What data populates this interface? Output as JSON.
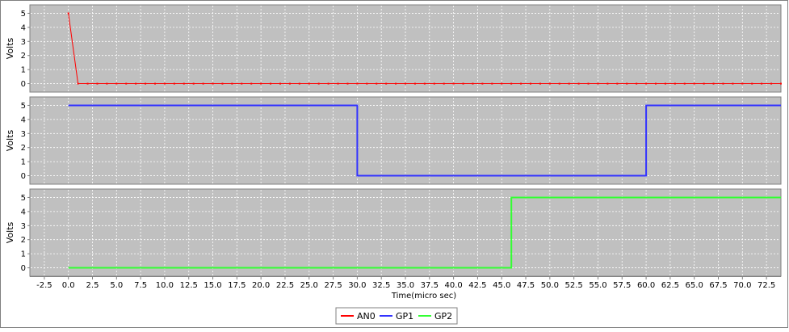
{
  "chart_data": {
    "type": "line",
    "xlabel": "Time(micro sec)",
    "xlim": [
      -4,
      74
    ],
    "x_ticks": [
      "-2.5",
      "0.0",
      "2.5",
      "5.0",
      "7.5",
      "10.0",
      "12.5",
      "15.0",
      "17.5",
      "20.0",
      "22.5",
      "25.0",
      "27.5",
      "30.0",
      "32.5",
      "35.0",
      "37.5",
      "40.0",
      "42.5",
      "45.0",
      "47.5",
      "50.0",
      "52.5",
      "55.0",
      "57.5",
      "60.0",
      "62.5",
      "65.0",
      "67.5",
      "70.0",
      "72.5"
    ],
    "grid": true,
    "legend_position": "bottom-center",
    "panels": [
      {
        "ylabel": "Volts",
        "ylim": [
          -0.6,
          5.6
        ],
        "y_ticks": [
          "0",
          "1",
          "2",
          "3",
          "4",
          "5"
        ],
        "series": [
          {
            "name": "AN0",
            "color": "#ff0000",
            "marker": "dot",
            "x": [
              0,
              1,
              2,
              3,
              4,
              5,
              6,
              7,
              8,
              9,
              10,
              11,
              12,
              13,
              14,
              15,
              16,
              17,
              18,
              19,
              20,
              21,
              22,
              23,
              24,
              25,
              26,
              27,
              28,
              29,
              30,
              31,
              32,
              33,
              34,
              35,
              36,
              37,
              38,
              39,
              40,
              41,
              42,
              43,
              44,
              45,
              46,
              47,
              48,
              49,
              50,
              51,
              52,
              53,
              54,
              55,
              56,
              57,
              58,
              59,
              60,
              61,
              62,
              63,
              64,
              65,
              66,
              67,
              68,
              69,
              70,
              71,
              72,
              73,
              74
            ],
            "y": [
              5,
              0,
              0,
              0,
              0,
              0,
              0,
              0,
              0,
              0,
              0,
              0,
              0,
              0,
              0,
              0,
              0,
              0,
              0,
              0,
              0,
              0,
              0,
              0,
              0,
              0,
              0,
              0,
              0,
              0,
              0,
              0,
              0,
              0,
              0,
              0,
              0,
              0,
              0,
              0,
              0,
              0,
              0,
              0,
              0,
              0,
              0,
              0,
              0,
              0,
              0,
              0,
              0,
              0,
              0,
              0,
              0,
              0,
              0,
              0,
              0,
              0,
              0,
              0,
              0,
              0,
              0,
              0,
              0,
              0,
              0,
              0,
              0,
              0,
              0
            ]
          }
        ]
      },
      {
        "ylabel": "Volts",
        "ylim": [
          -0.6,
          5.6
        ],
        "y_ticks": [
          "0",
          "1",
          "2",
          "3",
          "4",
          "5"
        ],
        "series": [
          {
            "name": "GP1",
            "color": "#3333ff",
            "marker": "none",
            "x": [
              0,
              30,
              30,
              60,
              60,
              74
            ],
            "y": [
              5,
              5,
              0,
              0,
              5,
              5
            ]
          }
        ]
      },
      {
        "ylabel": "Volts",
        "ylim": [
          -0.6,
          5.6
        ],
        "y_ticks": [
          "0",
          "1",
          "2",
          "3",
          "4",
          "5"
        ],
        "series": [
          {
            "name": "GP2",
            "color": "#33ff33",
            "marker": "none",
            "x": [
              0,
              46,
              46,
              74
            ],
            "y": [
              0,
              0,
              5,
              5
            ]
          }
        ]
      }
    ],
    "legend": [
      {
        "label": "AN0",
        "color": "#ff0000"
      },
      {
        "label": "GP1",
        "color": "#3333ff"
      },
      {
        "label": "GP2",
        "color": "#33ff33"
      }
    ],
    "colors": {
      "plot_background": "#c0c0c0",
      "grid": "#ffffff",
      "frame": "#808080"
    }
  }
}
